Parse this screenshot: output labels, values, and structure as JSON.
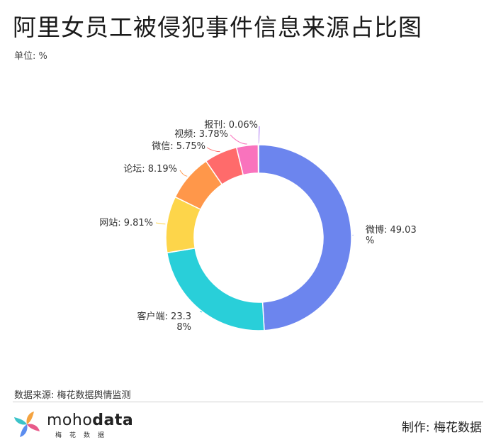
{
  "header": {
    "title": "阿里女员工被侵犯事件信息来源占比图",
    "unit": "单位: %"
  },
  "footer": {
    "source": "数据来源: 梅花数据舆情监测",
    "logo_word_light": "moho",
    "logo_word_bold": "data",
    "logo_sub": "梅花数据",
    "maker": "制作: 梅花数据"
  },
  "colors": {
    "petal1": "#f4a340",
    "petal2": "#e85a8a",
    "petal3": "#5b8def",
    "petal4": "#3bc3c9"
  },
  "chart_data": {
    "type": "pie",
    "donut": true,
    "categories": [
      "微博",
      "客户端",
      "网站",
      "论坛",
      "微信",
      "视频",
      "报刊"
    ],
    "values": [
      49.03,
      23.38,
      9.81,
      8.19,
      5.75,
      3.78,
      0.06
    ],
    "colors": [
      "#6c85ee",
      "#29cfd9",
      "#fdd54a",
      "#ff974a",
      "#ff6b6b",
      "#f973bd",
      "#a66df2"
    ],
    "labels": [
      [
        "微博: 49.03",
        "%"
      ],
      [
        "客户端: 23.3",
        "8%"
      ],
      [
        "网站: 9.81%"
      ],
      [
        "论坛: 8.19%"
      ],
      [
        "微信: 5.75%"
      ],
      [
        "视频: 3.78%"
      ],
      [
        "报刊: 0.06%"
      ]
    ]
  }
}
